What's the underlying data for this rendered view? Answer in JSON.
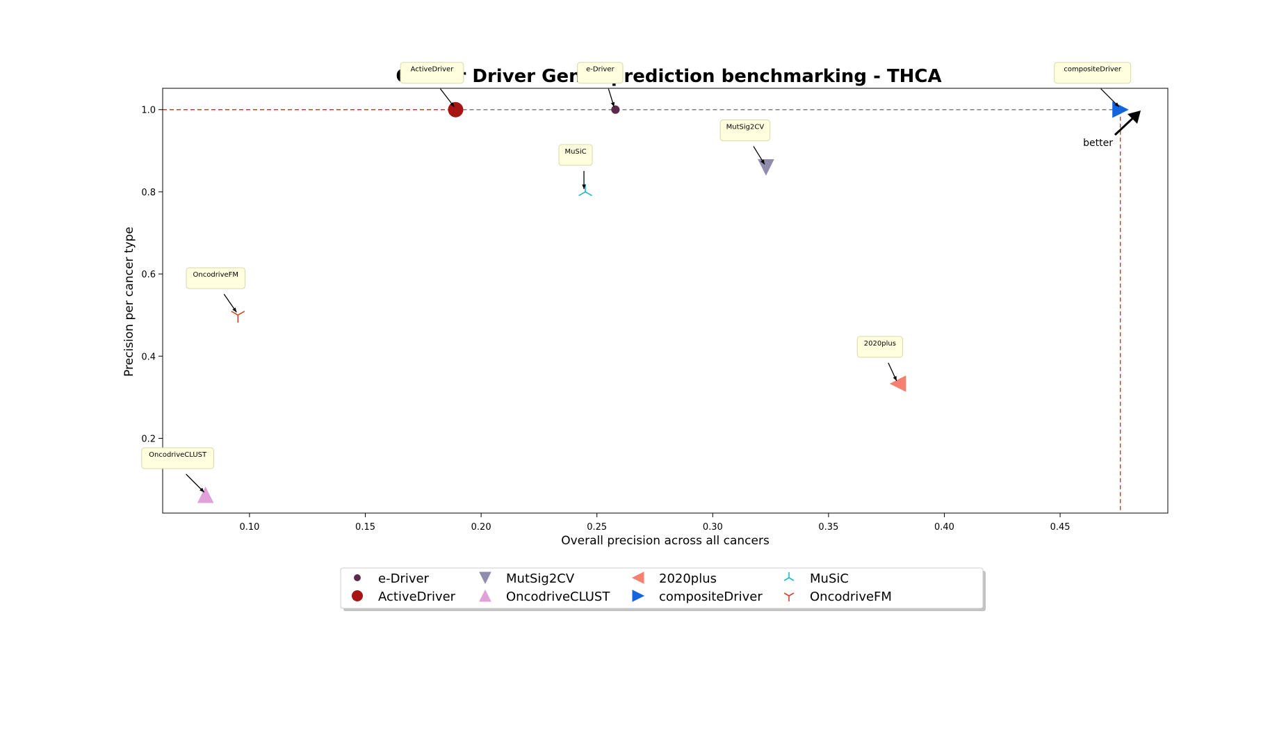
{
  "chart_data": {
    "type": "scatter",
    "title": "Cancer Driver Genes prediction benchmarking - THCA",
    "xlabel": "Overall precision across all cancers",
    "ylabel": "Precision per cancer type",
    "xlim": [
      0.0625,
      0.4965
    ],
    "ylim": [
      0.018,
      1.052
    ],
    "xticks": [
      "0.10",
      "0.15",
      "0.20",
      "0.25",
      "0.30",
      "0.35",
      "0.40",
      "0.45"
    ],
    "yticks": [
      "0.2",
      "0.4",
      "0.6",
      "0.8",
      "1.0"
    ],
    "grid": false,
    "legend_position": "bottom-center",
    "series": [
      {
        "name": "e-Driver",
        "x": 0.258,
        "y": 1.0,
        "color": "#5b2a4a",
        "marker": "small-circle"
      },
      {
        "name": "ActiveDriver",
        "x": 0.189,
        "y": 1.0,
        "color": "#a61414",
        "marker": "circle"
      },
      {
        "name": "MutSig2CV",
        "x": 0.323,
        "y": 0.86,
        "color": "#8f8cae",
        "marker": "triangle-down"
      },
      {
        "name": "OncodriveCLUST",
        "x": 0.081,
        "y": 0.062,
        "color": "#e0a0d8",
        "marker": "triangle-up"
      },
      {
        "name": "2020plus",
        "x": 0.38,
        "y": 0.333,
        "color": "#f58070",
        "marker": "triangle-left"
      },
      {
        "name": "compositeDriver",
        "x": 0.476,
        "y": 1.0,
        "color": "#1464e0",
        "marker": "triangle-right"
      },
      {
        "name": "MuSiC",
        "x": 0.245,
        "y": 0.8,
        "color": "#20b8c8",
        "marker": "tri-down"
      },
      {
        "name": "OncodriveFM",
        "x": 0.095,
        "y": 0.5,
        "color": "#d04828",
        "marker": "tri-up"
      }
    ],
    "pareto_frontier_x": [
      0.189,
      0.258,
      0.476
    ],
    "pareto_frontier_y": [
      1.0,
      1.0,
      1.0
    ],
    "reference_lines": {
      "y": 1.0,
      "x": 0.476,
      "color": "#ff0000"
    },
    "annotation_text": "better"
  }
}
